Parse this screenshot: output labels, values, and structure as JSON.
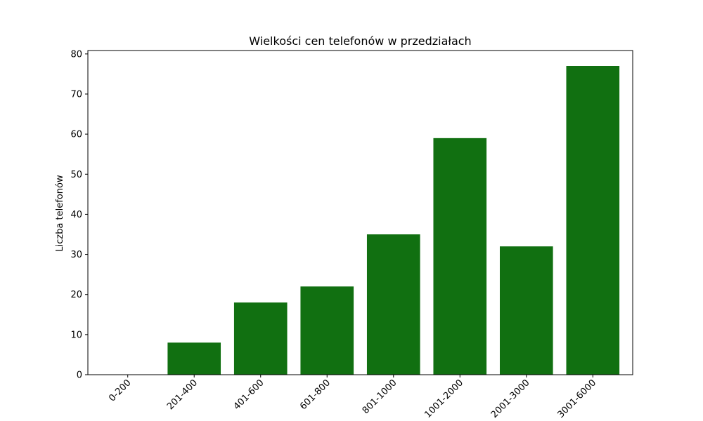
{
  "chart_data": {
    "type": "bar",
    "title": "Wielkości cen telefonów w przedziałach",
    "xlabel": "",
    "ylabel": "Liczba telefonów",
    "categories": [
      "0-200",
      "201-400",
      "401-600",
      "601-800",
      "801-1000",
      "1001-2000",
      "2001-3000",
      "3001-6000"
    ],
    "values": [
      0,
      8,
      18,
      22,
      35,
      59,
      32,
      77
    ],
    "ylim": [
      0,
      80.85
    ],
    "yticks": [
      0,
      10,
      20,
      30,
      40,
      50,
      60,
      70,
      80
    ],
    "grid": false,
    "bar_color": "#117011"
  }
}
